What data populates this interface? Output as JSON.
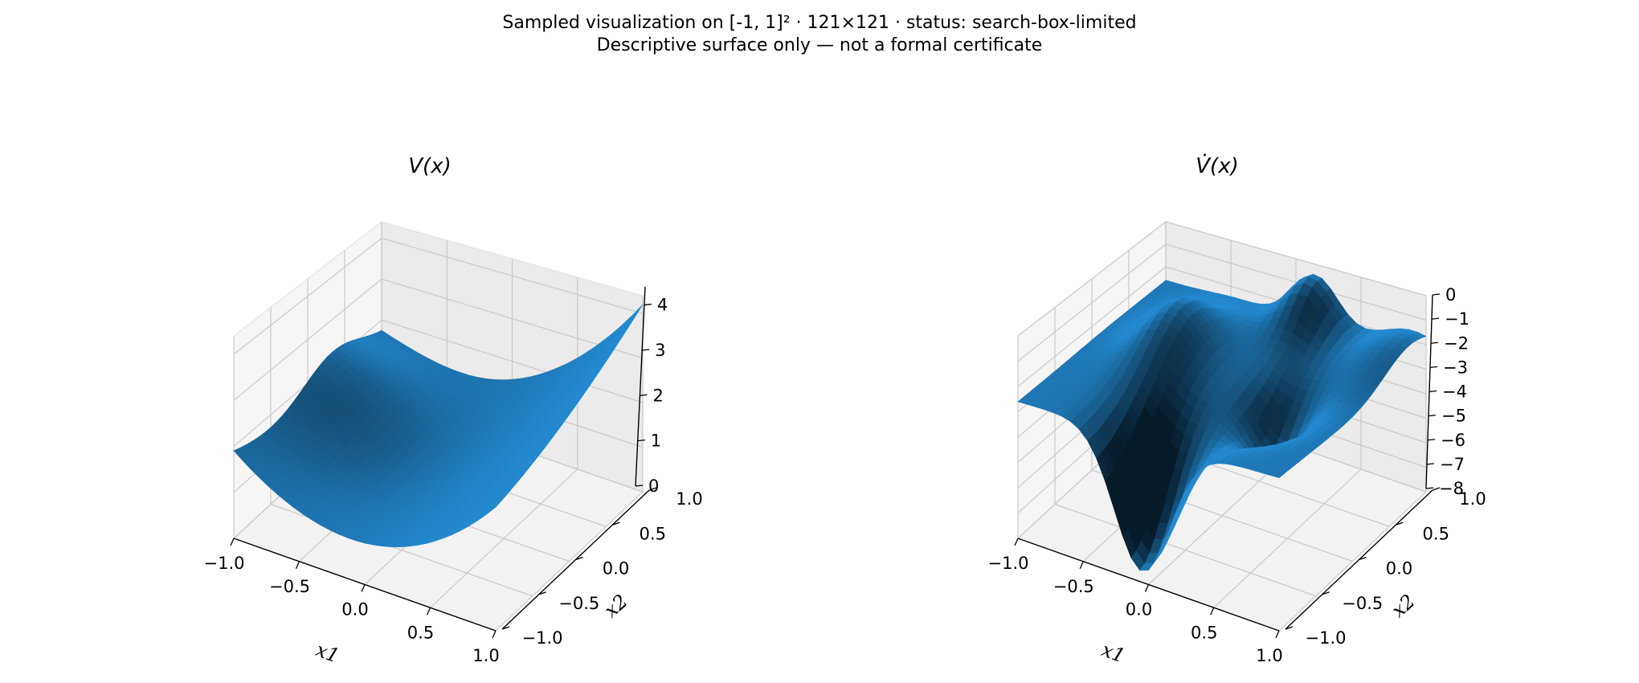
{
  "figure": {
    "suptitle_line1": "Sampled visualization on [-1, 1]² · 121×121 · status: search-box-limited",
    "suptitle_line2": "Descriptive surface only — not a formal certificate"
  },
  "chart_data": [
    {
      "type": "surface3d",
      "title": "V(x)",
      "xlabel": "x1",
      "ylabel": "x2",
      "zlabel": "",
      "xlim": [
        -1.0,
        1.0
      ],
      "ylim": [
        -1.0,
        1.0
      ],
      "zlim": [
        0,
        4.4
      ],
      "x_ticks": [
        "−1.0",
        "−0.5",
        "0.0",
        "0.5",
        "1.0"
      ],
      "y_ticks": [
        "−1.0",
        "−0.5",
        "0.0",
        "0.5",
        "1.0"
      ],
      "z_ticks": [
        "0",
        "1",
        "2",
        "3",
        "4"
      ],
      "z_tick_values": [
        0,
        1,
        2,
        3,
        4
      ],
      "grid": true,
      "color": "#1f77b4",
      "samples": {
        "x": [
          -1.0,
          -0.5,
          0.0,
          0.5,
          1.0
        ],
        "y": [
          -1.0,
          -0.5,
          0.0,
          0.5,
          1.0
        ],
        "z_rows_by_x": [
          [
            2.8,
            2.9,
            3.3,
            3.0,
            2.3
          ],
          [
            1.7,
            1.3,
            1.1,
            1.6,
            2.2
          ],
          [
            0.5,
            0.4,
            0.3,
            1.0,
            2.3
          ],
          [
            0.3,
            0.4,
            0.8,
            1.8,
            3.0
          ],
          [
            0.4,
            1.2,
            2.2,
            3.3,
            4.4
          ]
        ]
      }
    },
    {
      "type": "surface3d",
      "title": "V̇(x)",
      "xlabel": "x1",
      "ylabel": "x2",
      "zlabel": "",
      "xlim": [
        -1.0,
        1.0
      ],
      "ylim": [
        -1.0,
        1.0
      ],
      "zlim": [
        -8,
        0
      ],
      "x_ticks": [
        "−1.0",
        "−0.5",
        "0.0",
        "0.5",
        "1.0"
      ],
      "y_ticks": [
        "−1.0",
        "−0.5",
        "0.0",
        "0.5",
        "1.0"
      ],
      "z_ticks": [
        "0",
        "−1",
        "−2",
        "−3",
        "−4",
        "−5",
        "−6",
        "−7",
        "−8"
      ],
      "z_tick_values": [
        0,
        -1,
        -2,
        -3,
        -4,
        -5,
        -6,
        -7,
        -8
      ],
      "grid": true,
      "color": "#1f77b4",
      "samples": {
        "x": [
          -1.0,
          -0.5,
          0.0,
          0.5,
          1.0
        ],
        "y": [
          -1.0,
          -0.5,
          0.0,
          0.5,
          1.0
        ],
        "z_rows_by_x": [
          [
            -2.8,
            -2.4,
            -2.2,
            -2.6,
            -3.0
          ],
          [
            -4.2,
            -2.5,
            -0.6,
            -0.8,
            -1.5
          ],
          [
            -7.8,
            -5.0,
            -2.0,
            -1.0,
            -0.2
          ],
          [
            -5.0,
            -4.8,
            -5.2,
            -1.6,
            -0.2
          ],
          [
            -3.5,
            -3.2,
            -3.2,
            -1.7,
            -1.0
          ]
        ]
      }
    }
  ]
}
